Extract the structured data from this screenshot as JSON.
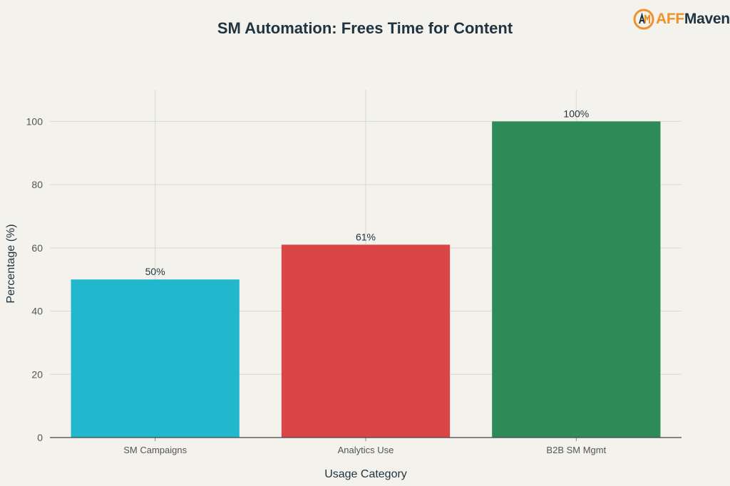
{
  "logo": {
    "text_prefix": "AFF",
    "text_suffix": "Maven",
    "icon": "affmaven-logo-icon"
  },
  "colors": {
    "background": "#f3f2ec",
    "grid": "#d9d9d4",
    "axis": "#444444",
    "text": "#1f3340",
    "logo_orange": "#f0922b"
  },
  "chart_data": {
    "type": "bar",
    "title": "SM Automation: Frees Time for Content",
    "xlabel": "Usage Category",
    "ylabel": "Percentage (%)",
    "categories": [
      "SM Campaigns",
      "Analytics Use",
      "B2B SM Mgmt"
    ],
    "values": [
      50,
      61,
      100
    ],
    "data_labels": [
      "50%",
      "61%",
      "100%"
    ],
    "bar_colors": [
      "#21b8cd",
      "#db4545",
      "#2e8b57"
    ],
    "ylim": [
      0,
      110
    ],
    "yticks": [
      0,
      20,
      40,
      60,
      80,
      100
    ],
    "grid": true,
    "legend": "none"
  }
}
